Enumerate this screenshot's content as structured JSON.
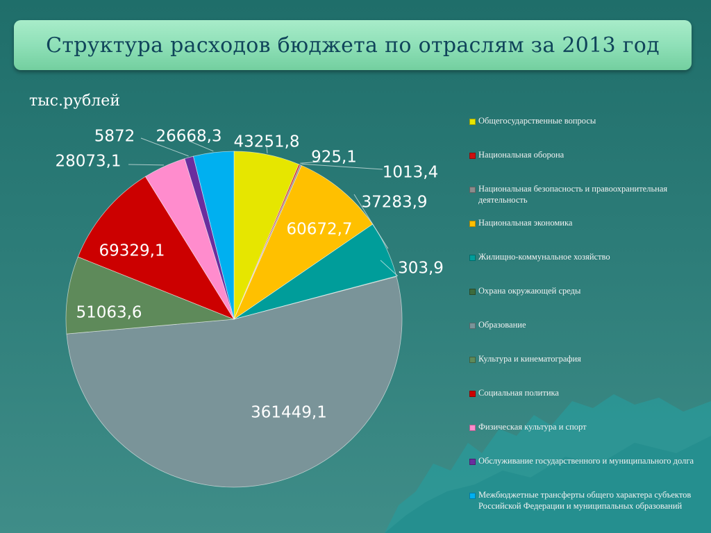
{
  "title": "Структура расходов бюджета по отраслям  за 2013 год",
  "unit_label": "тыс.рублей",
  "chart_data": {
    "type": "pie",
    "title": "Структура расходов бюджета по отраслям  за 2013 год",
    "unit": "тыс.рублей",
    "legend_position": "right",
    "slices": [
      {
        "name": "Общегосударственные вопросы",
        "value": 43251.8,
        "label": "43251,8",
        "color": "#e6e600"
      },
      {
        "name": "Национальная оборона",
        "value": 925.1,
        "label": "925,1",
        "color": "#cc1010"
      },
      {
        "name": "Национальная безопасность и правоохранительная деятельность",
        "value": 1013.4,
        "label": "1013,4",
        "color": "#8c8c8c"
      },
      {
        "name": "Национальная экономика",
        "value": 60672.7,
        "label": "60672,7",
        "color": "#ffc000"
      },
      {
        "name": "Жилищно-коммунальное хозяйство",
        "value": 37283.9,
        "label": "37283,9",
        "color": "#009d9a"
      },
      {
        "name": "Охрана окружающей среды",
        "value": 303.9,
        "label": "303,9",
        "color": "#3d6b3d"
      },
      {
        "name": "Образование",
        "value": 361449.1,
        "label": "361449,1",
        "color": "#7a9499"
      },
      {
        "name": "Культура и кинематография",
        "value": 51063.6,
        "label": "51063,6",
        "color": "#5e8a5a"
      },
      {
        "name": "Социальная политика",
        "value": 69329.1,
        "label": "69329,1",
        "color": "#cc0000"
      },
      {
        "name": "Физическая культура и спорт",
        "value": 28073.1,
        "label": "28073,1",
        "color": "#ff8ccd"
      },
      {
        "name": "Обслуживание государственного и муниципального долга",
        "value": 5872,
        "label": "5872",
        "color": "#6a2e9e"
      },
      {
        "name": "Межбюджетные трансферты общего характера субъектов Российской Федерации и муниципальных образований",
        "value": 26668.3,
        "label": "26668,3",
        "color": "#00b0f0"
      }
    ]
  }
}
